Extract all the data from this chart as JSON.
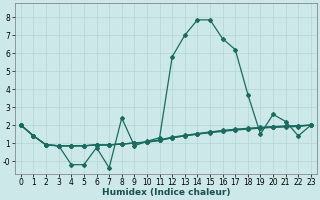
{
  "title": "",
  "xlabel": "Humidex (Indice chaleur)",
  "xlim": [
    -0.5,
    23.5
  ],
  "ylim": [
    -0.7,
    8.8
  ],
  "background_color": "#cce8e8",
  "grid_color": "#b8d8d8",
  "line_color": "#1a6b5e",
  "xticks": [
    0,
    1,
    2,
    3,
    4,
    5,
    6,
    7,
    8,
    9,
    10,
    11,
    12,
    13,
    14,
    15,
    16,
    17,
    18,
    19,
    20,
    21,
    22,
    23
  ],
  "yticks": [
    0,
    1,
    2,
    3,
    4,
    5,
    6,
    7,
    8
  ],
  "series": [
    [
      2.0,
      1.4,
      0.9,
      0.85,
      -0.2,
      -0.2,
      0.75,
      -0.38,
      2.4,
      0.85,
      1.1,
      1.3,
      5.8,
      7.0,
      7.85,
      7.85,
      6.8,
      6.2,
      3.7,
      1.5,
      2.6,
      2.2,
      1.4,
      2.0
    ],
    [
      2.0,
      1.4,
      0.9,
      0.85,
      0.85,
      0.85,
      0.9,
      0.9,
      0.95,
      1.0,
      1.05,
      1.15,
      1.3,
      1.4,
      1.5,
      1.58,
      1.65,
      1.72,
      1.78,
      1.83,
      1.87,
      1.9,
      1.92,
      2.0
    ],
    [
      2.0,
      1.4,
      0.9,
      0.85,
      0.85,
      0.85,
      0.9,
      0.9,
      0.95,
      1.0,
      1.05,
      1.15,
      1.3,
      1.4,
      1.5,
      1.6,
      1.68,
      1.75,
      1.8,
      1.85,
      1.9,
      1.93,
      1.95,
      2.0
    ],
    [
      2.0,
      1.4,
      0.9,
      0.85,
      0.85,
      0.85,
      0.9,
      0.9,
      0.95,
      1.0,
      1.07,
      1.18,
      1.33,
      1.43,
      1.53,
      1.62,
      1.7,
      1.77,
      1.82,
      1.87,
      1.92,
      1.95,
      1.97,
      2.0
    ]
  ],
  "marker": "D",
  "markersize": 2.0,
  "linewidth": 0.9,
  "xlabel_fontsize": 6.5,
  "tick_fontsize": 5.5
}
